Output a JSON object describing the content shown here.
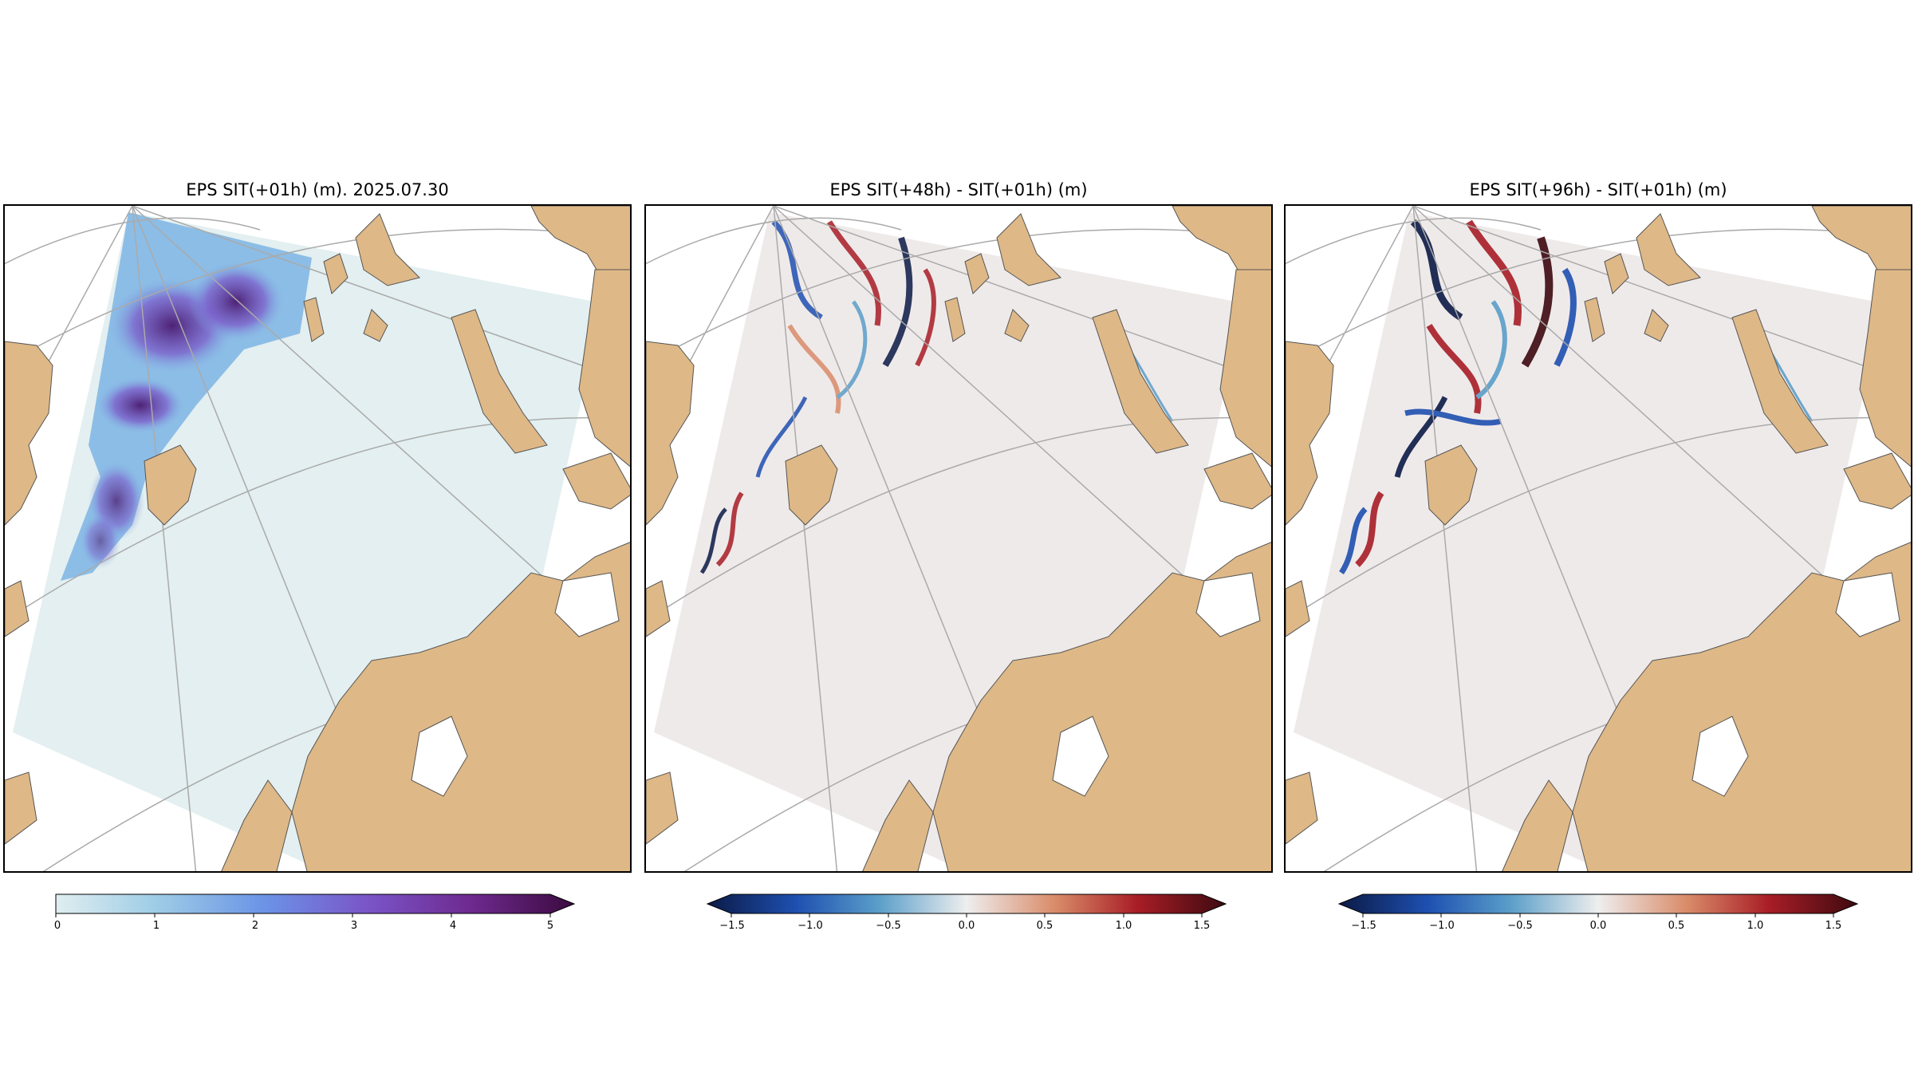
{
  "panels": [
    {
      "title": "EPS SIT(+01h) (m). 2025.07.30"
    },
    {
      "title": "EPS SIT(+48h) - SIT(+01h) (m)"
    },
    {
      "title": "EPS SIT(+96h) - SIT(+01h) (m)"
    }
  ],
  "colorbars": [
    {
      "ticks": [
        "0",
        "1",
        "2",
        "3",
        "4",
        "5"
      ],
      "extend": "max",
      "palette": [
        "#e0eef0",
        "#9ccbe6",
        "#6b94e6",
        "#7a55c8",
        "#6e2a8f",
        "#3b0a3f"
      ]
    },
    {
      "ticks": [
        "−1.5",
        "−1.0",
        "−0.5",
        "0.0",
        "0.5",
        "1.0",
        "1.5"
      ],
      "extend": "both",
      "palette": [
        "#0b1a45",
        "#1e4fb0",
        "#5a9ec9",
        "#eeeeee",
        "#d98c6a",
        "#a81d26",
        "#3d0a10"
      ]
    },
    {
      "ticks": [
        "−1.5",
        "−1.0",
        "−0.5",
        "0.0",
        "0.5",
        "1.0",
        "1.5"
      ],
      "extend": "both",
      "palette": [
        "#0b1a45",
        "#1e4fb0",
        "#5a9ec9",
        "#eeeeee",
        "#d98c6a",
        "#a81d26",
        "#3d0a10"
      ]
    }
  ],
  "colors": {
    "land": "#deb887",
    "ocean": "#ffffff",
    "grid": "#aaaaaa",
    "domain_thickness": "#e3eff0",
    "domain_difference": "#efeaea"
  }
}
